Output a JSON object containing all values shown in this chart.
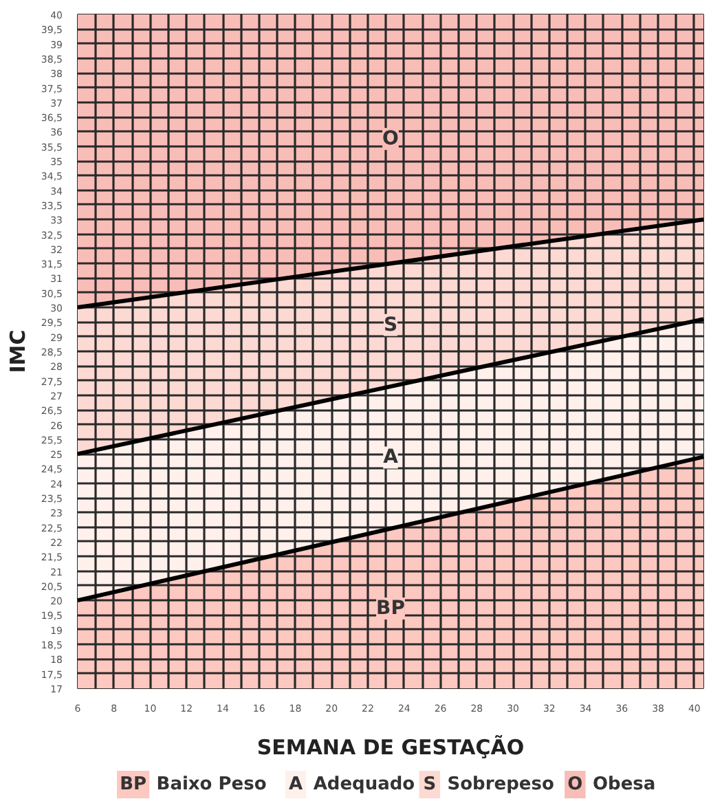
{
  "chart_data": {
    "type": "area",
    "xlabel": "SEMANA DE GESTAÇÃO",
    "ylabel": "IMC",
    "x": [
      6,
      40.5
    ],
    "series": [
      {
        "name": "Obesa",
        "color": "#f9bdb7",
        "values": [
          40,
          40
        ]
      },
      {
        "name": "Sobrepeso",
        "color": "#fcd9d2",
        "values": [
          30,
          33.0
        ]
      },
      {
        "name": "Adequado",
        "color": "#fff0ec",
        "values": [
          25,
          29.6
        ]
      },
      {
        "name": "Baixo Peso",
        "color": "#fcc8c0",
        "values": [
          20,
          24.9
        ]
      }
    ],
    "annotations": [
      "O",
      "S",
      "A",
      "BP"
    ],
    "xlim": [
      6,
      40.5
    ],
    "ylim": [
      17,
      40
    ],
    "xticks": [
      6,
      {
        "value": 7,
        "label": null
      },
      8,
      {
        "value": 9,
        "label": null
      },
      10,
      {
        "value": 11,
        "label": null
      },
      12,
      {
        "value": 13,
        "label": null
      },
      14,
      {
        "value": 15,
        "label": null
      },
      16,
      {
        "value": 17,
        "label": null
      },
      18,
      {
        "value": 19,
        "label": null
      },
      20,
      {
        "value": 21,
        "label": null
      },
      22,
      {
        "value": 23,
        "label": null
      },
      24,
      {
        "value": 25,
        "label": null
      },
      26,
      {
        "value": 27,
        "label": null
      },
      28,
      {
        "value": 29,
        "label": null
      },
      30,
      {
        "value": 31,
        "label": null
      },
      32,
      {
        "value": 33,
        "label": null
      },
      34,
      {
        "value": 35,
        "label": null
      },
      36,
      {
        "value": 37,
        "label": null
      },
      38,
      {
        "value": 39,
        "label": null
      },
      40
    ],
    "yticks": [
      17,
      {
        "value": 17.5,
        "label": "17,5"
      },
      18,
      {
        "value": 18.5,
        "label": "18,5"
      },
      19,
      {
        "value": 19.5,
        "label": "19,5"
      },
      20,
      {
        "value": 20.5,
        "label": "20,5"
      },
      21,
      {
        "value": 21.5,
        "label": "21,5"
      },
      22,
      {
        "value": 22.5,
        "label": "22,5"
      },
      23,
      {
        "value": 23.5,
        "label": "23,5"
      },
      24,
      {
        "value": 24.5,
        "label": "24,5"
      },
      25,
      {
        "value": 25.5,
        "label": "25,5"
      },
      26,
      {
        "value": 26.5,
        "label": "26,5"
      },
      27,
      {
        "value": 27.5,
        "label": "27,5"
      },
      28,
      {
        "value": 28.5,
        "label": "28,5"
      },
      29,
      {
        "value": 29.5,
        "label": "29,5"
      },
      30,
      {
        "value": 30.5,
        "label": "30,5"
      },
      31,
      {
        "value": 31.5,
        "label": "31,5"
      },
      32,
      {
        "value": 32.5,
        "label": "32,5"
      },
      33,
      {
        "value": 33.5,
        "label": "33,5"
      },
      34,
      {
        "value": 34.5,
        "label": "34,5"
      },
      35,
      {
        "value": 35.5,
        "label": "35,5"
      },
      36,
      {
        "value": 36.5,
        "label": "36,5"
      },
      37,
      {
        "value": 37.5,
        "label": "37,5"
      },
      38,
      {
        "value": 38.5,
        "label": "38,5"
      },
      39,
      {
        "value": 39.5,
        "label": "39,5"
      },
      40
    ],
    "grid": true,
    "legend": "bottom"
  }
}
